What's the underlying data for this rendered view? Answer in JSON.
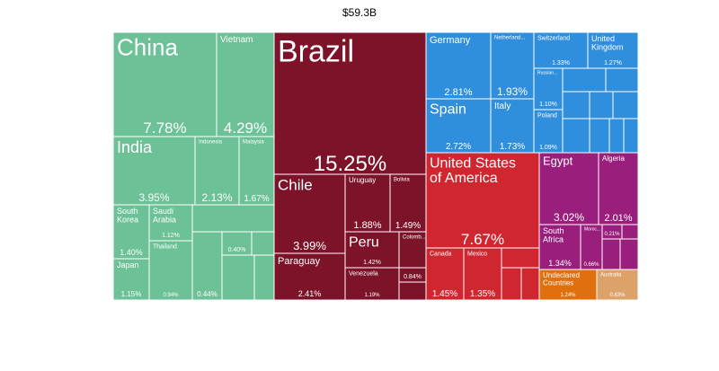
{
  "chart_data": {
    "type": "treemap",
    "title": "$59.3B",
    "groups": [
      {
        "color": "#6cc296",
        "categories": [
          "China",
          "Vietnam",
          "India",
          "Indonesia",
          "Malaysia",
          "South Korea",
          "Japan",
          "Saudi Arabia",
          "Thailand",
          null,
          null,
          null,
          null,
          null,
          null
        ],
        "values": [
          7.78,
          4.29,
          3.95,
          2.13,
          1.67,
          1.4,
          1.15,
          1.12,
          0.94,
          0.6,
          0.44,
          0.4,
          0.15,
          0.3,
          0.2
        ],
        "value_labels": [
          "7.78%",
          "4.29%",
          "3.95%",
          "2.13%",
          "1.67%",
          "1.40%",
          "1.15%",
          "1.12%",
          "0.94%",
          null,
          "0.44%",
          "0.40%",
          null,
          null,
          null
        ]
      },
      {
        "color": "#7d1329",
        "categories": [
          "Brazil",
          "Chile",
          "Uruguay",
          "Bolivia",
          "Peru",
          "Colomb...",
          "Paraguay",
          "Venezuela",
          null,
          null
        ],
        "values": [
          15.25,
          3.99,
          1.88,
          1.49,
          1.42,
          0.9,
          2.41,
          1.19,
          0.84,
          0.5
        ],
        "value_labels": [
          "15.25%",
          "3.99%",
          "1.88%",
          "1.49%",
          "1.42%",
          null,
          "2.41%",
          "1.19%",
          "0.84%",
          null
        ]
      },
      {
        "color": "#2f8fdc",
        "categories": [
          "Germany",
          "Netherland...",
          "Switzerland",
          "United Kingdom",
          "Spain",
          "Italy",
          "Russian...",
          "Poland",
          null,
          null,
          null,
          null,
          null,
          null,
          null,
          null,
          null
        ],
        "values": [
          2.81,
          1.93,
          1.33,
          1.27,
          2.72,
          1.73,
          1.1,
          1.09,
          0.5,
          0.4,
          0.35,
          0.3,
          0.3,
          0.25,
          0.2,
          0.1,
          0.1
        ],
        "value_labels": [
          "2.81%",
          "1.93%",
          "1.33%",
          "1.27%",
          "2.72%",
          "1.73%",
          "1.10%",
          "1.09%",
          null,
          null,
          null,
          null,
          null,
          null,
          null,
          null,
          null
        ]
      },
      {
        "color": "#d0262f",
        "categories": [
          "United States of America",
          "Canada",
          "Mexico",
          null,
          null,
          null
        ],
        "values": [
          7.67,
          1.45,
          1.35,
          0.45,
          0.3,
          0.3
        ],
        "value_labels": [
          "7.67%",
          "1.45%",
          "1.35%",
          null,
          null,
          null
        ]
      },
      {
        "color": "#9a1f7d",
        "categories": [
          "Egypt",
          "Algeria",
          "South Africa",
          "Moroc...",
          null,
          null,
          null,
          null
        ],
        "values": [
          3.02,
          2.01,
          1.34,
          0.66,
          0.21,
          0.15,
          0.3,
          0.3
        ],
        "value_labels": [
          "3.02%",
          "2.01%",
          "1.34%",
          "0.66%",
          "0.21%",
          null,
          null,
          null
        ]
      },
      {
        "color": "#e0700f",
        "categories": [
          "Undeclared Countries"
        ],
        "values": [
          1.24
        ],
        "value_labels": [
          "1.24%"
        ]
      },
      {
        "color": "#dca26a",
        "categories": [
          "Australia"
        ],
        "values": [
          0.83
        ],
        "value_labels": [
          "0.83%"
        ]
      }
    ]
  }
}
